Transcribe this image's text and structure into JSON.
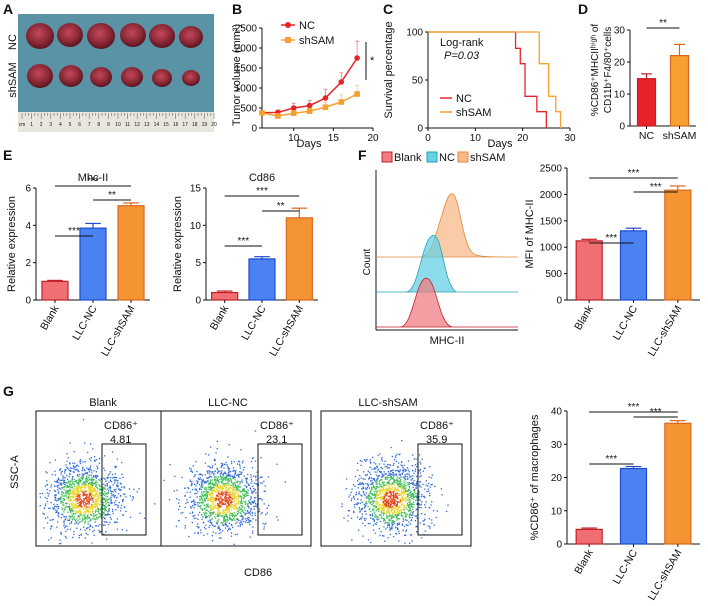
{
  "colors": {
    "nc": "#e8242a",
    "shsam": "#f6a02f",
    "blank": "#ef6f73",
    "llcnc": "#4a82f2",
    "llcshsam": "#f59433",
    "blank_dark": "#c21f27",
    "llcnc_dark": "#1e4bd0",
    "llcshsam_dark": "#d8661a",
    "photo_bg": "#5a93a6",
    "tumor": "#8e2a38"
  },
  "panels": {
    "A": "A",
    "B": "B",
    "C": "C",
    "D": "D",
    "E": "E",
    "F": "F",
    "G": "G"
  },
  "panel_a": {
    "row1": "NC",
    "row2": "shSAM",
    "ruler": [
      "cm",
      "1",
      "2",
      "3",
      "4",
      "5",
      "6",
      "7",
      "8",
      "9",
      "10",
      "11",
      "12",
      "13",
      "14",
      "15",
      "16",
      "17",
      "18",
      "19",
      "20"
    ]
  },
  "sig": {
    "one": "*",
    "two": "**",
    "three": "***"
  },
  "panel_b": {
    "ylabel": "Tumor volume (mm³)",
    "xlabel": "Days",
    "sig": "*"
  },
  "panel_c": {
    "ylabel": "Survival percentage",
    "xlabel": "Days",
    "stat1": "Log-rank",
    "stat2": "P=0.03"
  },
  "panel_d": {
    "ylabel1": "%CD86⁺MHCIIʰⁱᵍʰ of",
    "ylabel2": "CD11b⁺F4/80⁺cells"
  },
  "panel_f": {
    "legend": [
      "Blank",
      "NC",
      "shSAM"
    ],
    "xlabel": "MHC-II",
    "ylabel": "Count"
  },
  "panel_g": {
    "ylabel": "SSC-A",
    "xlabel": "CD86",
    "gate": "CD86⁺",
    "plots": [
      {
        "title": "Blank",
        "value": "4.81"
      },
      {
        "title": "LLC-NC",
        "value": "23.1"
      },
      {
        "title": "LLC-shSAM",
        "value": "35.9"
      }
    ]
  },
  "chart_data": [
    {
      "id": "B",
      "type": "line",
      "title": "",
      "xlabel": "Days",
      "ylabel": "Tumor volume (mm³)",
      "xlim": [
        6,
        20
      ],
      "ylim": [
        0,
        2500
      ],
      "xticks": [
        10,
        15,
        20
      ],
      "yticks": [
        0,
        500,
        1000,
        1500,
        2000,
        2500
      ],
      "series": [
        {
          "name": "NC",
          "x": [
            6,
            8,
            10,
            12,
            14,
            16,
            18
          ],
          "y": [
            380,
            390,
            500,
            560,
            750,
            1150,
            1750
          ],
          "err": [
            40,
            60,
            120,
            130,
            220,
            230,
            420
          ]
        },
        {
          "name": "shSAM",
          "x": [
            6,
            8,
            10,
            12,
            14,
            16,
            18
          ],
          "y": [
            380,
            300,
            370,
            420,
            520,
            650,
            850
          ],
          "err": [
            40,
            60,
            70,
            80,
            120,
            180,
            220
          ]
        }
      ]
    },
    {
      "id": "C",
      "type": "line",
      "title": "",
      "xlabel": "Days",
      "ylabel": "Survival percentage",
      "xlim": [
        0,
        30
      ],
      "ylim": [
        0,
        100
      ],
      "xticks": [
        0,
        10,
        20,
        30
      ],
      "yticks": [
        0,
        50,
        100
      ],
      "series": [
        {
          "name": "NC",
          "x": [
            0,
            17.5,
            18.5,
            19.5,
            20.5,
            23,
            25
          ],
          "y": [
            100,
            100,
            83,
            67,
            33,
            17,
            0
          ]
        },
        {
          "name": "shSAM",
          "x": [
            0,
            22,
            23.5,
            25.5,
            27,
            28
          ],
          "y": [
            100,
            100,
            67,
            33,
            17,
            0
          ]
        }
      ]
    },
    {
      "id": "D",
      "type": "bar",
      "xlabel": "",
      "ylabel": "%CD86⁺MHCIIʰⁱᵍʰ of CD11b⁺F4/80⁺cells",
      "ylim": [
        0,
        30
      ],
      "yticks": [
        0,
        10,
        20,
        30
      ],
      "categories": [
        "NC",
        "shSAM"
      ],
      "values": [
        14.8,
        22
      ],
      "err": [
        1.5,
        3.5
      ]
    },
    {
      "id": "E1",
      "type": "bar",
      "title": "Mhc-II",
      "ylabel": "Relative expression",
      "ylim": [
        0,
        6
      ],
      "yticks": [
        0,
        2,
        4,
        6
      ],
      "categories": [
        "Blank",
        "LLC-NC",
        "LLC-shSAM"
      ],
      "values": [
        1.0,
        3.85,
        5.05
      ],
      "err": [
        0.05,
        0.25,
        0.15
      ]
    },
    {
      "id": "E2",
      "type": "bar",
      "title": "Cd86",
      "ylabel": "Relative expression",
      "ylim": [
        0,
        15
      ],
      "yticks": [
        0,
        5,
        10,
        15
      ],
      "categories": [
        "Blank",
        "LLC-NC",
        "LLC-shSAM"
      ],
      "values": [
        1.0,
        5.5,
        11.0
      ],
      "err": [
        0.2,
        0.3,
        1.3
      ]
    },
    {
      "id": "F",
      "type": "bar",
      "ylabel": "MFI of MHC-II",
      "ylim": [
        0,
        2500
      ],
      "yticks": [
        0,
        500,
        1000,
        1500,
        2000,
        2500
      ],
      "categories": [
        "Blank",
        "LLC-NC",
        "LLC-shSAM"
      ],
      "values": [
        1120,
        1310,
        2080
      ],
      "err": [
        30,
        50,
        80
      ]
    },
    {
      "id": "G",
      "type": "bar",
      "ylabel": "%CD86⁺ of macrophages",
      "ylim": [
        0,
        40
      ],
      "yticks": [
        0,
        10,
        20,
        30,
        40
      ],
      "categories": [
        "Blank",
        "LLC-NC",
        "LLC-shSAM"
      ],
      "values": [
        4.4,
        22.7,
        36.3
      ],
      "err": [
        0.4,
        0.6,
        0.8
      ]
    }
  ]
}
